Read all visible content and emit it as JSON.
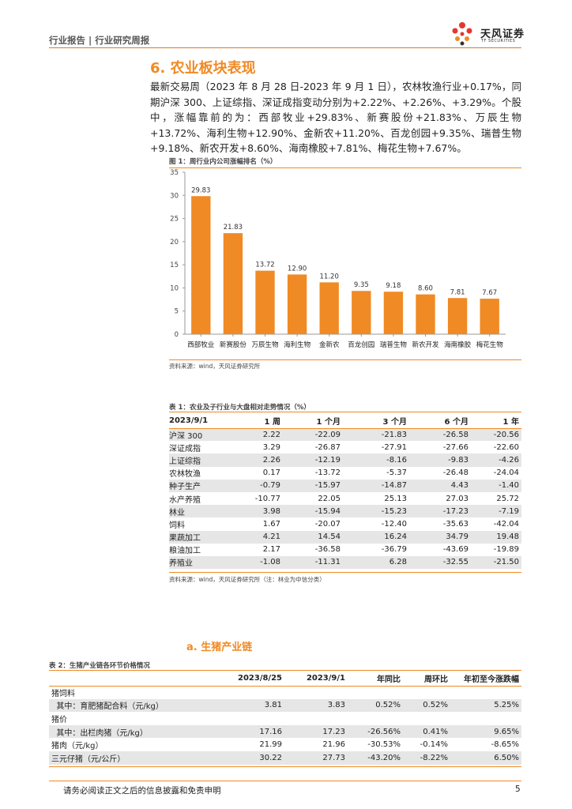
{
  "header": {
    "left_text": "行业报告 | 行业研究周报",
    "logo_text": "天风证券",
    "logo_sub": "TF SECURITIES"
  },
  "section": {
    "title": "6. 农业板块表现",
    "paragraph": "最新交易周（2023 年 8 月 28 日-2023 年 9 月 1 日），农林牧渔行业+0.17%，同期沪深 300、上证综指、深证成指变动分别为+2.22%、+2.26%、+3.29%。个股中，涨幅靠前的为：西部牧业+29.83%、新赛股份+21.83%、万辰生物+13.72%、海利生物+12.90%、金新农+11.20%、百龙创园+9.35%、瑞普生物+9.18%、新农开发+8.60%、海南橡胶+7.81%、梅花生物+7.67%。"
  },
  "figure1": {
    "caption": "图 1：周行业内公司涨幅排名（%）",
    "source": "资料来源：wind，天风证券研究所"
  },
  "chart_data": {
    "type": "bar",
    "title": "周行业内公司涨幅排名（%）",
    "categories": [
      "西部牧业",
      "新赛股份",
      "万辰生物",
      "海利生物",
      "金新农",
      "百龙创园",
      "瑞普生物",
      "新农开发",
      "海南橡胶",
      "梅花生物"
    ],
    "values": [
      29.83,
      21.83,
      13.72,
      12.9,
      11.2,
      9.35,
      9.18,
      8.6,
      7.81,
      7.67
    ],
    "value_labels": [
      "29.83",
      "21.83",
      "13.72",
      "12.90",
      "11.20",
      "9.35",
      "9.18",
      "8.60",
      "7.81",
      "7.67"
    ],
    "ylim": [
      0,
      35
    ],
    "yticks": [
      "0",
      "5",
      "10",
      "15",
      "20",
      "25",
      "30",
      "35"
    ],
    "grid": false,
    "bar_color": "#f08a24"
  },
  "table1": {
    "caption": "表 1：农业及子行业与大盘相对走势情况（%）",
    "headers": [
      "2023/9/1",
      "1 周",
      "1 个月",
      "3 个月",
      "6 个月",
      "1 年"
    ],
    "rows": [
      [
        "沪深 300",
        "2.22",
        "-22.09",
        "-21.83",
        "-26.58",
        "-20.56"
      ],
      [
        "深证成指",
        "3.29",
        "-26.87",
        "-27.91",
        "-27.66",
        "-22.60"
      ],
      [
        "上证综指",
        "2.26",
        "-12.19",
        "-8.16",
        "-9.83",
        "-4.26"
      ],
      [
        "农林牧渔",
        "0.17",
        "-13.72",
        "-5.37",
        "-26.48",
        "-24.04"
      ],
      [
        "种子生产",
        "-0.79",
        "-15.97",
        "-14.87",
        "4.43",
        "-1.40"
      ],
      [
        "水产养殖",
        "-10.77",
        "22.05",
        "25.13",
        "27.03",
        "25.72"
      ],
      [
        "林业",
        "3.98",
        "-15.94",
        "-15.23",
        "-17.23",
        "-7.19"
      ],
      [
        "饲料",
        "1.67",
        "-20.07",
        "-12.40",
        "-35.63",
        "-42.04"
      ],
      [
        "果蔬加工",
        "4.21",
        "14.54",
        "16.24",
        "34.79",
        "19.48"
      ],
      [
        "粮油加工",
        "2.17",
        "-36.58",
        "-36.79",
        "-43.69",
        "-19.89"
      ],
      [
        "养殖业",
        "-1.08",
        "-11.31",
        "6.28",
        "-32.55",
        "-21.50"
      ]
    ],
    "source": "资料来源：wind，天风证券研究所（注：林业为中信分类）"
  },
  "subsection": {
    "title": "a.  生猪产业链"
  },
  "table2": {
    "caption": "表 2：生猪产业链各环节价格情况",
    "headers": [
      "",
      "2023/8/25",
      "2023/9/1",
      "年同比",
      "周环比",
      "年初至今涨跌幅"
    ],
    "rows": [
      [
        "猪饲料",
        "",
        "",
        "",
        "",
        ""
      ],
      [
        "  其中：育肥猪配合料（元/kg）",
        "3.81",
        "3.83",
        "0.52%",
        "0.52%",
        "5.25%"
      ],
      [
        "猪价",
        "",
        "",
        "",
        "",
        ""
      ],
      [
        "  其中：出栏肉猪（元/kg）",
        "17.16",
        "17.23",
        "-26.56%",
        "0.41%",
        "9.65%"
      ],
      [
        "猪肉（元/kg）",
        "21.99",
        "21.96",
        "-30.53%",
        "-0.14%",
        "-8.65%"
      ],
      [
        "三元仔猪（元/公斤）",
        "30.22",
        "27.73",
        "-43.20%",
        "-8.22%",
        "6.50%"
      ]
    ]
  },
  "footer": {
    "disclaimer": "请务必阅读正文之后的信息披露和免责申明",
    "page": "5"
  }
}
